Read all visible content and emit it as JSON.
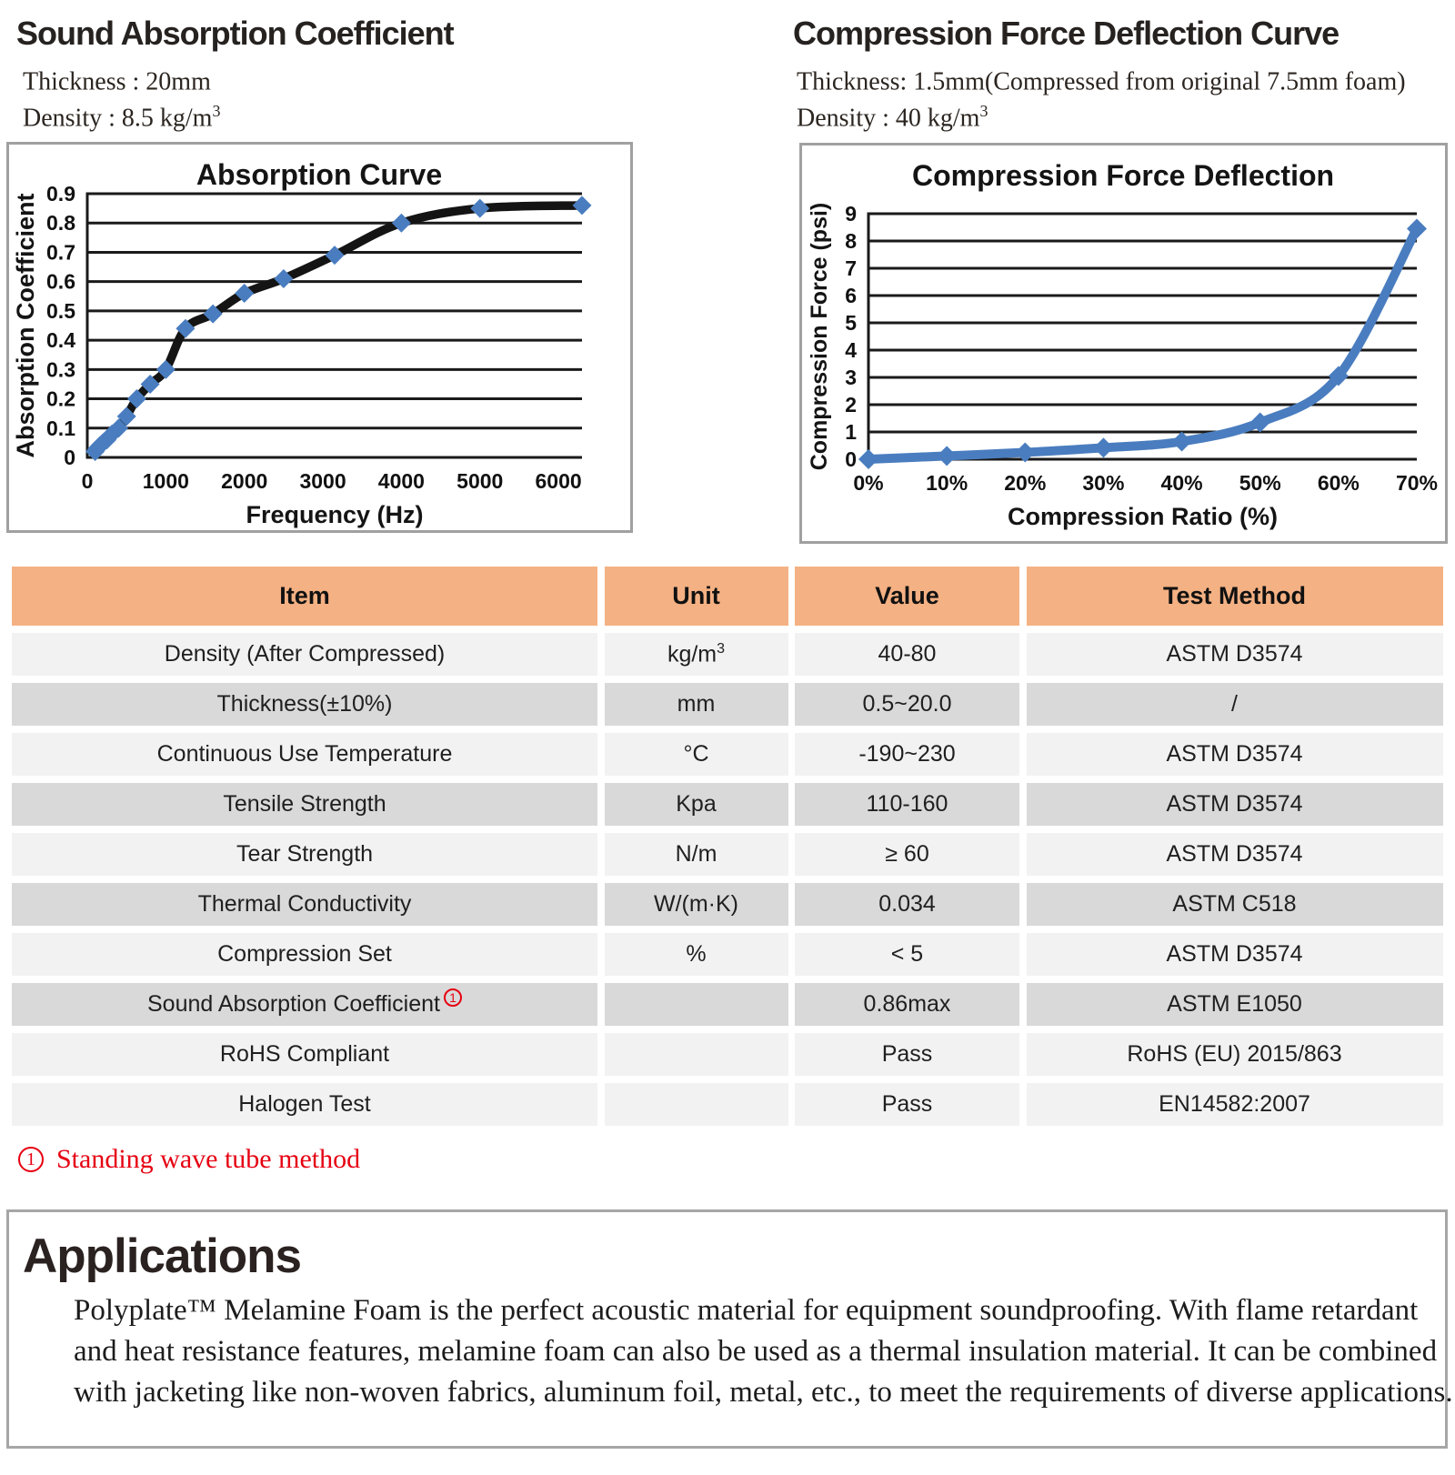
{
  "sections": {
    "absorption": {
      "heading": "Sound Absorption Coefficient",
      "meta_lines": [
        {
          "text": "Thickness : 20mm",
          "sup": ""
        },
        {
          "text": "Density : 8.5 kg/m",
          "sup": "3"
        }
      ]
    },
    "compression": {
      "heading": "Compression Force Deflection Curve",
      "meta_lines": [
        {
          "text": "Thickness: 1.5mm(Compressed from original 7.5mm foam)",
          "sup": ""
        },
        {
          "text": "Density : 40 kg/m",
          "sup": "3"
        }
      ]
    }
  },
  "chart_data": [
    {
      "type": "line",
      "title": "Absorption Curve",
      "xlabel": "Frequency (Hz)",
      "ylabel": "Absorption Coefficient",
      "x": [
        100,
        125,
        160,
        200,
        250,
        315,
        400,
        500,
        630,
        800,
        1000,
        1250,
        1600,
        2000,
        2500,
        3150,
        4000,
        5000,
        6300
      ],
      "values": [
        0.02,
        0.03,
        0.04,
        0.05,
        0.06,
        0.08,
        0.1,
        0.14,
        0.2,
        0.25,
        0.3,
        0.44,
        0.49,
        0.56,
        0.61,
        0.69,
        0.8,
        0.85,
        0.86
      ],
      "xlim": [
        0,
        6300
      ],
      "ylim": [
        0,
        0.9
      ],
      "xticks": [
        0,
        1000,
        2000,
        3000,
        4000,
        5000,
        6000
      ],
      "xtick_labels": [
        "0",
        "1000",
        "2000",
        "3000",
        "4000",
        "5000",
        "6000"
      ],
      "yticks": [
        0,
        0.1,
        0.2,
        0.3,
        0.4,
        0.5,
        0.6,
        0.7,
        0.8,
        0.9
      ],
      "ytick_labels": [
        "0",
        "0.1",
        "0.2",
        "0.3",
        "0.4",
        "0.5",
        "0.6",
        "0.7",
        "0.8",
        "0.9"
      ],
      "grid": true,
      "legend": "none",
      "line_color": "#141414",
      "marker_color": "#4a7dbf"
    },
    {
      "type": "line",
      "title": "Compression Force Deflection",
      "xlabel": "Compression Ratio (%)",
      "ylabel": "Compression Force  (psi)",
      "x": [
        0,
        10,
        20,
        30,
        40,
        50,
        60,
        70
      ],
      "values": [
        0,
        0.12,
        0.25,
        0.42,
        0.65,
        1.35,
        3.05,
        8.45
      ],
      "xlim": [
        0,
        70
      ],
      "ylim": [
        0,
        9
      ],
      "xticks": [
        0,
        10,
        20,
        30,
        40,
        50,
        60,
        70
      ],
      "xtick_labels": [
        "0%",
        "10%",
        "20%",
        "30%",
        "40%",
        "50%",
        "60%",
        "70%"
      ],
      "yticks": [
        0,
        1,
        2,
        3,
        4,
        5,
        6,
        7,
        8,
        9
      ],
      "ytick_labels": [
        "0",
        "1",
        "2",
        "3",
        "4",
        "5",
        "6",
        "7",
        "8",
        "9"
      ],
      "grid": true,
      "legend": "none",
      "line_color": "#4a7dbf",
      "marker_color": "#4a7dbf"
    }
  ],
  "table": {
    "headers": [
      "Item",
      "Unit",
      "Value",
      "Test Method"
    ],
    "rows": [
      {
        "item": "Density (After Compressed)",
        "item_footnote": "",
        "unit": "kg/m",
        "unit_sup": "3",
        "value": "40-80",
        "method": "ASTM D3574",
        "shade": "light"
      },
      {
        "item": "Thickness(±10%)",
        "item_footnote": "",
        "unit": "mm",
        "unit_sup": "",
        "value": "0.5~20.0",
        "method": "/",
        "shade": "dark"
      },
      {
        "item": "Continuous Use Temperature",
        "item_footnote": "",
        "unit": "°C",
        "unit_sup": "",
        "value": "-190~230",
        "method": "ASTM D3574",
        "shade": "light"
      },
      {
        "item": "Tensile Strength",
        "item_footnote": "",
        "unit": "Kpa",
        "unit_sup": "",
        "value": "110-160",
        "method": "ASTM D3574",
        "shade": "dark"
      },
      {
        "item": "Tear Strength",
        "item_footnote": "",
        "unit": "N/m",
        "unit_sup": "",
        "value": "≥ 60",
        "method": "ASTM D3574",
        "shade": "light"
      },
      {
        "item": "Thermal Conductivity",
        "item_footnote": "",
        "unit": "W/(m·K)",
        "unit_sup": "",
        "value": "0.034",
        "method": "ASTM C518",
        "shade": "dark"
      },
      {
        "item": "Compression Set",
        "item_footnote": "",
        "unit": "%",
        "unit_sup": "",
        "value": "< 5",
        "method": "ASTM D3574",
        "shade": "light"
      },
      {
        "item": "Sound Absorption Coefficient",
        "item_footnote": "1",
        "unit": "",
        "unit_sup": "",
        "value": "0.86max",
        "method": "ASTM E1050",
        "shade": "dark"
      },
      {
        "item": "RoHS Compliant",
        "item_footnote": "",
        "unit": "",
        "unit_sup": "",
        "value": "Pass",
        "method": "RoHS (EU) 2015/863",
        "shade": "light"
      },
      {
        "item": "Halogen Test",
        "item_footnote": "",
        "unit": "",
        "unit_sup": "",
        "value": "Pass",
        "method": "EN14582:2007",
        "shade": "light"
      }
    ]
  },
  "footnote": {
    "mark": "1",
    "text": "Standing wave tube method"
  },
  "applications": {
    "heading": "Applications",
    "lines": [
      "Polyplate™ Melamine Foam is the perfect acoustic material for equipment soundproofing. With flame retardant",
      "and heat resistance features, melamine foam can also be used as a thermal insulation material. It can be combined",
      "with jacketing like non-woven fabrics, aluminum foil, metal, etc., to meet the requirements of diverse applications."
    ]
  },
  "colors": {
    "header_orange": "#f4b183",
    "row_light": "#f2f2f2",
    "row_dark": "#d9d9d9",
    "accent_blue": "#4a7dbf",
    "accent_red": "#e60012",
    "box_border": "#a0a0a0"
  }
}
